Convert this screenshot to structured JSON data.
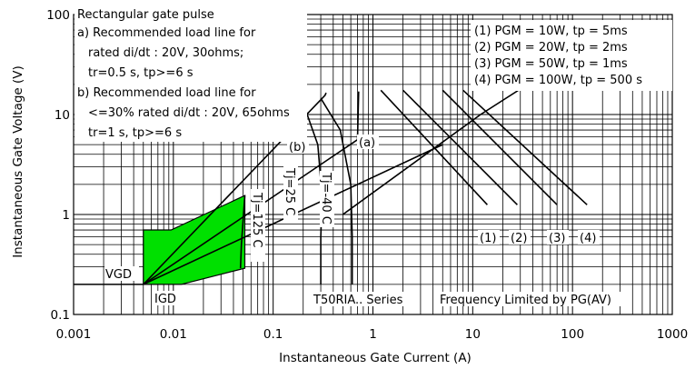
{
  "chart_data": {
    "type": "line",
    "xlabel": "Instantaneous Gate Current (A)",
    "ylabel": "Instantaneous Gate Voltage (V)",
    "x_scale": "log",
    "y_scale": "log",
    "xlim": [
      0.001,
      1000
    ],
    "ylim": [
      0.1,
      100
    ],
    "x_ticks": [
      "0.001",
      "0.01",
      "0.1",
      "1",
      "10",
      "100",
      "1000"
    ],
    "y_ticks": [
      "0.1",
      "1",
      "10",
      "100"
    ],
    "grid": true,
    "notes": [
      "Rectangular gate pulse",
      "a) Recommended load line for",
      "rated di/dt : 20V, 30ohms;",
      "tr=0.5 s, tp>=6 s",
      "b) Recommended load line for",
      "<=30% rated di/dt : 20V, 65ohms",
      "tr=1 s, tp>=6 s"
    ],
    "legend": [
      "(1) PGM = 10W, tp = 5ms",
      "(2) PGM = 20W, tp = 2ms",
      "(3) PGM = 50W, tp = 1ms",
      "(4) PGM = 100W, tp = 500 s"
    ],
    "load_lines": [
      {
        "label": "(a)",
        "points": [
          [
            0.005,
            0.2
          ],
          [
            0.7,
            5.6
          ],
          [
            0.72,
            17
          ]
        ]
      },
      {
        "label": "(b)",
        "points": [
          [
            0.005,
            0.2
          ],
          [
            0.33,
            15.5
          ],
          [
            0.34,
            16.5
          ]
        ]
      }
    ],
    "load_line_ext": [
      [
        0.5,
        1.0
      ],
      [
        12,
        10
      ],
      [
        60,
        28
      ]
    ],
    "temp_curves": [
      {
        "label": "Tj=125 C",
        "points": [
          [
            0.052,
            1.55
          ],
          [
            0.048,
            0.5
          ],
          [
            0.047,
            0.29
          ]
        ]
      },
      {
        "label": "Tj=25 C",
        "points": [
          [
            0.2,
            13
          ],
          [
            0.28,
            5
          ],
          [
            0.31,
            1.5
          ],
          [
            0.3,
            0.6
          ],
          [
            0.3,
            0.2
          ]
        ]
      },
      {
        "label": "Tj=-40 C",
        "points": [
          [
            0.3,
            14.5
          ],
          [
            0.47,
            7
          ],
          [
            0.6,
            2
          ],
          [
            0.62,
            0.6
          ],
          [
            0.62,
            0.2
          ]
        ]
      }
    ],
    "power_curves": [
      {
        "label": "(1)",
        "points": [
          [
            1.2,
            17.5
          ],
          [
            14,
            1.25
          ]
        ]
      },
      {
        "label": "(2)",
        "points": [
          [
            2.0,
            17.5
          ],
          [
            28,
            1.25
          ]
        ]
      },
      {
        "label": "(3)",
        "points": [
          [
            5.0,
            17.5
          ],
          [
            70,
            1.25
          ]
        ]
      },
      {
        "label": "(4)",
        "points": [
          [
            8.0,
            17.5
          ],
          [
            140,
            1.25
          ]
        ]
      }
    ],
    "low_line": [
      [
        0.005,
        0.2
      ],
      [
        5,
        5
      ]
    ],
    "region": {
      "fill": "#00e000",
      "points": [
        [
          0.005,
          0.2
        ],
        [
          0.005,
          0.7
        ],
        [
          0.0095,
          0.7
        ],
        [
          0.052,
          1.55
        ],
        [
          0.052,
          0.29
        ],
        [
          0.012,
          0.2
        ]
      ]
    },
    "labels": {
      "vgd": "VGD",
      "igd": "IGD",
      "tj125": "Tj=125 C",
      "tj25": "Tj=25 C",
      "tjm40": "Tj=-40 C",
      "a": "(a)",
      "b": "(b)",
      "p1": "(1)",
      "p2": "(2)",
      "p3": "(3)",
      "p4": "(4)",
      "series": "T50RIA.. Series",
      "freq": "Frequency Limited by PG(AV)"
    }
  }
}
